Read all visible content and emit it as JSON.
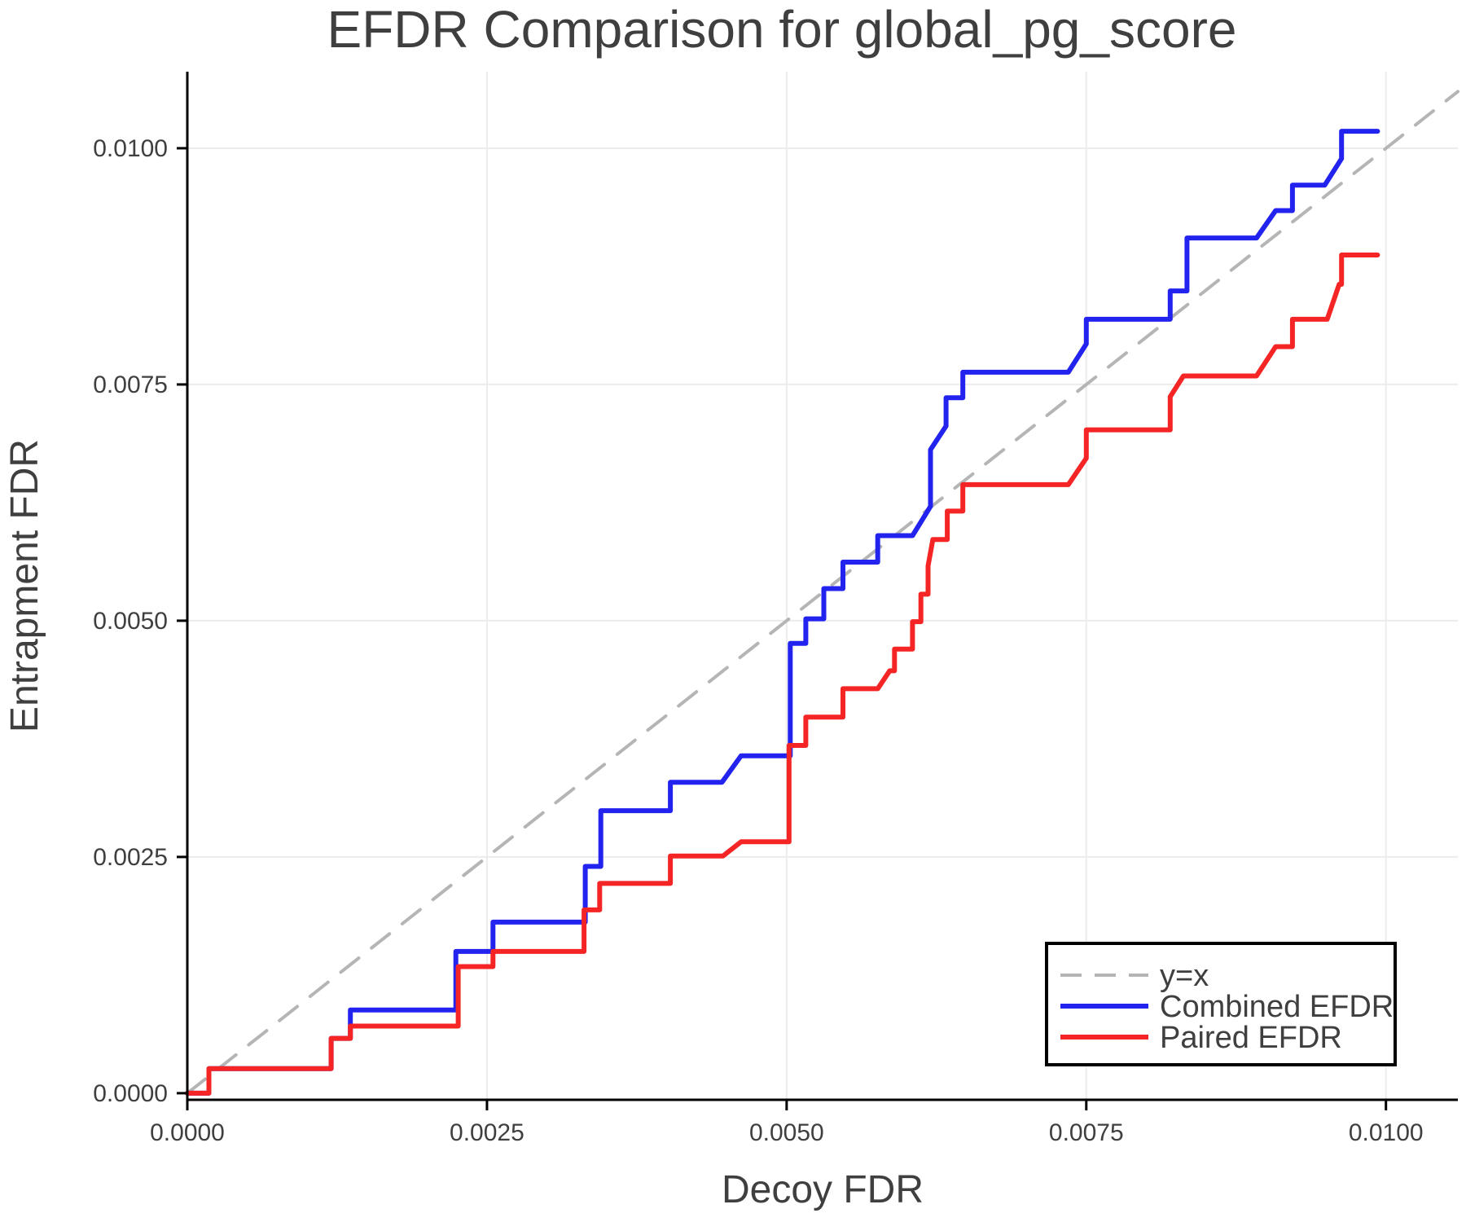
{
  "chart_data": {
    "type": "line",
    "subtype": "step-efdr-comparison",
    "title": "EFDR Comparison for global_pg_score",
    "xlabel": "Decoy FDR",
    "ylabel": "Entrapment FDR",
    "xlim": [
      0,
      0.0106
    ],
    "ylim": [
      -7e-05,
      0.01081
    ],
    "grid": true,
    "legend_position": "bottom-right",
    "x_ticks": [
      {
        "value": 0.0,
        "label": "0.0000"
      },
      {
        "value": 0.0025,
        "label": "0.0025"
      },
      {
        "value": 0.005,
        "label": "0.0050"
      },
      {
        "value": 0.0075,
        "label": "0.0075"
      },
      {
        "value": 0.01,
        "label": "0.0100"
      }
    ],
    "y_ticks": [
      {
        "value": 0.0,
        "label": "0.0000"
      },
      {
        "value": 0.0025,
        "label": "0.0025"
      },
      {
        "value": 0.005,
        "label": "0.0050"
      },
      {
        "value": 0.0075,
        "label": "0.0075"
      },
      {
        "value": 0.01,
        "label": "0.0100"
      }
    ],
    "colors": {
      "identity": "#b5b5b5",
      "combined": "#2323f0",
      "paired": "#f52525",
      "grid": "#ececec",
      "axis": "#000000",
      "text": "#3f3f3f"
    },
    "series": [
      {
        "name": "y=x",
        "style": "dashed",
        "color": "#b5b5b5",
        "width": 4,
        "points": [
          [
            0,
            0
          ],
          [
            0.0106,
            0.0106
          ]
        ]
      },
      {
        "name": "Combined EFDR",
        "style": "solid",
        "color": "#2323f0",
        "width": 6,
        "points": [
          [
            0,
            0
          ],
          [
            0.00018,
            0
          ],
          [
            0.00018,
            0.00026
          ],
          [
            0.0012,
            0.00026
          ],
          [
            0.0012,
            0.00058
          ],
          [
            0.00136,
            0.00058
          ],
          [
            0.00136,
            0.00088
          ],
          [
            0.00224,
            0.00088
          ],
          [
            0.00224,
            0.0015
          ],
          [
            0.00255,
            0.0015
          ],
          [
            0.00255,
            0.00181
          ],
          [
            0.00332,
            0.00181
          ],
          [
            0.00332,
            0.0024
          ],
          [
            0.00345,
            0.0024
          ],
          [
            0.00345,
            0.00299
          ],
          [
            0.00403,
            0.00299
          ],
          [
            0.00403,
            0.00329
          ],
          [
            0.00446,
            0.00329
          ],
          [
            0.00462,
            0.00357
          ],
          [
            0.00503,
            0.00357
          ],
          [
            0.00503,
            0.00476
          ],
          [
            0.00516,
            0.00476
          ],
          [
            0.00516,
            0.00502
          ],
          [
            0.00531,
            0.00502
          ],
          [
            0.00531,
            0.00534
          ],
          [
            0.00547,
            0.00534
          ],
          [
            0.00547,
            0.00562
          ],
          [
            0.00576,
            0.00562
          ],
          [
            0.00576,
            0.0059
          ],
          [
            0.00605,
            0.0059
          ],
          [
            0.0062,
            0.00621
          ],
          [
            0.0062,
            0.00681
          ],
          [
            0.00633,
            0.00706
          ],
          [
            0.00633,
            0.00736
          ],
          [
            0.00647,
            0.00736
          ],
          [
            0.00647,
            0.00763
          ],
          [
            0.00735,
            0.00763
          ],
          [
            0.0075,
            0.00793
          ],
          [
            0.0075,
            0.00819
          ],
          [
            0.0082,
            0.00819
          ],
          [
            0.0082,
            0.00849
          ],
          [
            0.00834,
            0.00849
          ],
          [
            0.00834,
            0.00905
          ],
          [
            0.00892,
            0.00905
          ],
          [
            0.00908,
            0.00934
          ],
          [
            0.00922,
            0.00934
          ],
          [
            0.00922,
            0.00961
          ],
          [
            0.00949,
            0.00961
          ],
          [
            0.00963,
            0.00989
          ],
          [
            0.00963,
            0.01018
          ],
          [
            0.00993,
            0.01018
          ]
        ]
      },
      {
        "name": "Paired EFDR",
        "style": "solid",
        "color": "#f52525",
        "width": 6,
        "points": [
          [
            0,
            0
          ],
          [
            0.00018,
            0
          ],
          [
            0.00018,
            0.00026
          ],
          [
            0.0012,
            0.00026
          ],
          [
            0.0012,
            0.00058
          ],
          [
            0.00136,
            0.00058
          ],
          [
            0.00136,
            0.00071
          ],
          [
            0.00226,
            0.00071
          ],
          [
            0.00226,
            0.00134
          ],
          [
            0.00255,
            0.00134
          ],
          [
            0.00255,
            0.0015
          ],
          [
            0.00331,
            0.0015
          ],
          [
            0.00331,
            0.00194
          ],
          [
            0.00344,
            0.00194
          ],
          [
            0.00344,
            0.00222
          ],
          [
            0.00403,
            0.00222
          ],
          [
            0.00403,
            0.00251
          ],
          [
            0.00447,
            0.00251
          ],
          [
            0.00462,
            0.00266
          ],
          [
            0.00502,
            0.00266
          ],
          [
            0.00502,
            0.00368
          ],
          [
            0.00516,
            0.00368
          ],
          [
            0.00516,
            0.00398
          ],
          [
            0.00547,
            0.00398
          ],
          [
            0.00547,
            0.00428
          ],
          [
            0.00576,
            0.00428
          ],
          [
            0.00586,
            0.00447
          ],
          [
            0.0059,
            0.00447
          ],
          [
            0.0059,
            0.0047
          ],
          [
            0.00605,
            0.0047
          ],
          [
            0.00605,
            0.00499
          ],
          [
            0.00612,
            0.00499
          ],
          [
            0.00612,
            0.00528
          ],
          [
            0.00618,
            0.00528
          ],
          [
            0.00618,
            0.00558
          ],
          [
            0.00622,
            0.00586
          ],
          [
            0.00634,
            0.00586
          ],
          [
            0.00634,
            0.00616
          ],
          [
            0.00647,
            0.00616
          ],
          [
            0.00647,
            0.00644
          ],
          [
            0.00735,
            0.00644
          ],
          [
            0.0075,
            0.00672
          ],
          [
            0.0075,
            0.00702
          ],
          [
            0.0082,
            0.00702
          ],
          [
            0.0082,
            0.00737
          ],
          [
            0.00831,
            0.00759
          ],
          [
            0.00892,
            0.00759
          ],
          [
            0.00908,
            0.0079
          ],
          [
            0.00922,
            0.0079
          ],
          [
            0.00922,
            0.00819
          ],
          [
            0.00951,
            0.00819
          ],
          [
            0.00961,
            0.00856
          ],
          [
            0.00963,
            0.00856
          ],
          [
            0.00963,
            0.00887
          ],
          [
            0.00993,
            0.00887
          ]
        ]
      }
    ]
  }
}
